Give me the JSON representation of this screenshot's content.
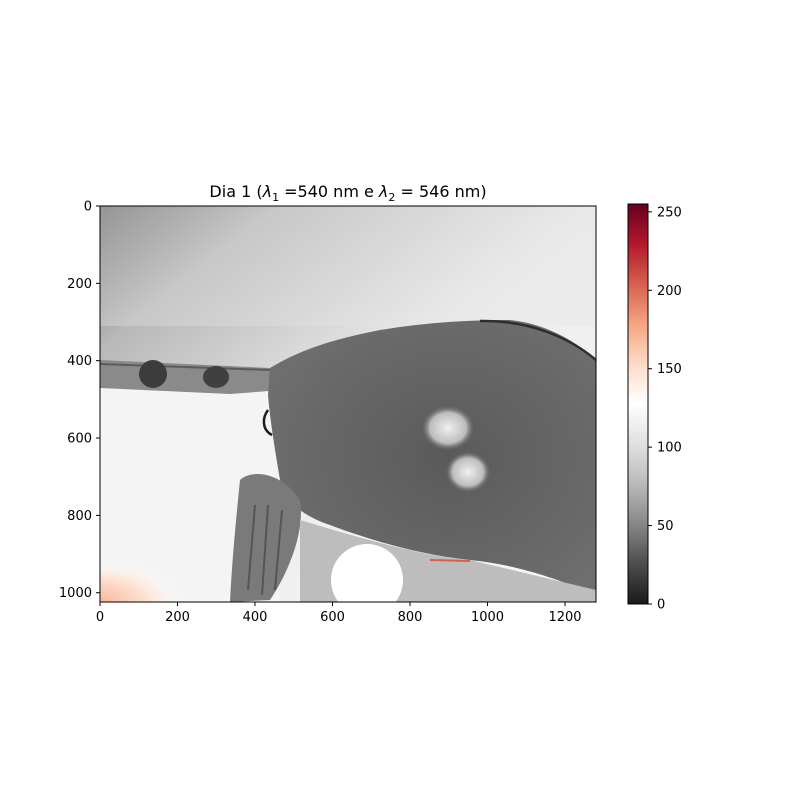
{
  "chart_data": {
    "type": "heatmap",
    "title_parts": [
      "Dia 1 (",
      "λ",
      "1",
      " =540 nm e ",
      "λ",
      "2",
      " = 546 nm)"
    ],
    "image_width": 1280,
    "image_height": 1024,
    "x_ticks": [
      0,
      200,
      400,
      600,
      800,
      1000,
      1200
    ],
    "y_ticks": [
      0,
      200,
      400,
      600,
      800,
      1000
    ],
    "colorbar": {
      "colormap": "RdGy_r",
      "range": [
        0,
        255
      ],
      "ticks": [
        0,
        50,
        100,
        150,
        200,
        250
      ],
      "colors": [
        "#1a1a1a",
        "#4d4d4d",
        "#878787",
        "#bababa",
        "#e0e0e0",
        "#ffffff",
        "#fddbc7",
        "#f4a582",
        "#d6604d",
        "#b2182b",
        "#67001f"
      ]
    },
    "grid": false
  }
}
